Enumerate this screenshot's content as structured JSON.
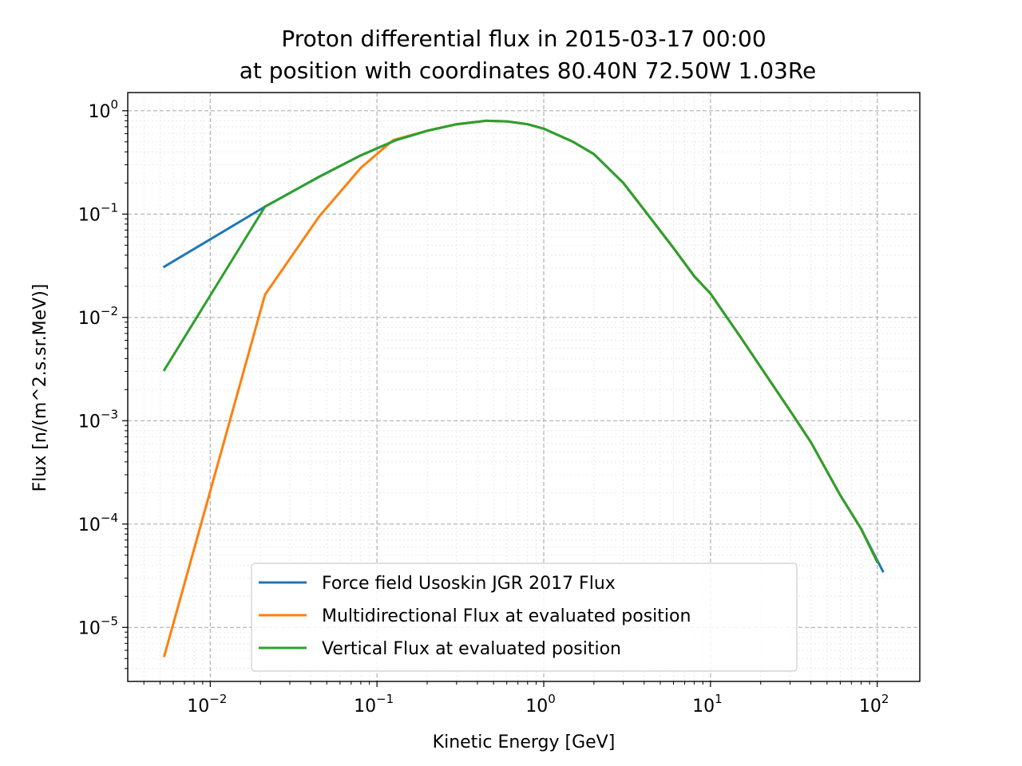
{
  "chart_data": {
    "type": "line",
    "title_line1": "Proton differential flux in 2015-03-17 00:00",
    "title_line2": "at position with coordinates 80.40N 72.50W 1.03Re",
    "xlabel": "Kinetic Energy [GeV]",
    "ylabel": "Flux [n/(m^2.s.sr.MeV)]",
    "xscale": "log",
    "yscale": "log",
    "xlim": [
      0.0032,
      180
    ],
    "ylim": [
      3e-06,
      1.5
    ],
    "grid": true,
    "legend_position": "lower-center",
    "x_ticks": [
      {
        "base": "10",
        "exp": "−2"
      },
      {
        "base": "10",
        "exp": "−1"
      },
      {
        "base": "10",
        "exp": "0"
      },
      {
        "base": "10",
        "exp": "1"
      },
      {
        "base": "10",
        "exp": "2"
      }
    ],
    "y_ticks": [
      {
        "base": "10",
        "exp": "−5"
      },
      {
        "base": "10",
        "exp": "−4"
      },
      {
        "base": "10",
        "exp": "−3"
      },
      {
        "base": "10",
        "exp": "−2"
      },
      {
        "base": "10",
        "exp": "−1"
      },
      {
        "base": "10",
        "exp": "0"
      }
    ],
    "series": [
      {
        "name": "Force field Usoskin JGR 2017 Flux",
        "color": "#1f77b4",
        "points": [
          [
            0.0053,
            0.031
          ],
          [
            0.0213,
            0.118
          ],
          [
            0.045,
            0.23
          ],
          [
            0.08,
            0.37
          ],
          [
            0.13,
            0.52
          ],
          [
            0.2,
            0.64
          ],
          [
            0.3,
            0.74
          ],
          [
            0.45,
            0.8
          ],
          [
            0.6,
            0.79
          ],
          [
            0.8,
            0.74
          ],
          [
            1.0,
            0.67
          ],
          [
            1.5,
            0.5
          ],
          [
            2.0,
            0.38
          ],
          [
            3.0,
            0.2
          ],
          [
            4.0,
            0.11
          ],
          [
            6.0,
            0.047
          ],
          [
            8.0,
            0.025
          ],
          [
            10.0,
            0.017
          ],
          [
            15.0,
            0.0066
          ],
          [
            20.0,
            0.0033
          ],
          [
            30.0,
            0.00125
          ],
          [
            40.0,
            0.00062
          ],
          [
            60.0,
            0.00019
          ],
          [
            80.0,
            9e-05
          ],
          [
            108.0,
            3.5e-05
          ]
        ]
      },
      {
        "name": "Multidirectional Flux at evaluated position",
        "color": "#ff7f0e",
        "points": [
          [
            0.0053,
            5.3e-06
          ],
          [
            0.0213,
            0.0166
          ],
          [
            0.045,
            0.095
          ],
          [
            0.08,
            0.28
          ],
          [
            0.125,
            0.52
          ],
          [
            0.2,
            0.64
          ],
          [
            0.3,
            0.74
          ],
          [
            0.45,
            0.8
          ],
          [
            0.6,
            0.79
          ],
          [
            0.8,
            0.74
          ],
          [
            1.0,
            0.67
          ],
          [
            1.5,
            0.5
          ],
          [
            2.0,
            0.38
          ],
          [
            3.0,
            0.2
          ],
          [
            4.0,
            0.11
          ],
          [
            6.0,
            0.047
          ],
          [
            8.0,
            0.025
          ],
          [
            10.0,
            0.017
          ],
          [
            15.0,
            0.0066
          ],
          [
            20.0,
            0.0033
          ],
          [
            30.0,
            0.00125
          ],
          [
            40.0,
            0.00062
          ],
          [
            60.0,
            0.00019
          ],
          [
            80.0,
            9e-05
          ],
          [
            100.0,
            4.3e-05
          ]
        ]
      },
      {
        "name": "Vertical Flux at evaluated position",
        "color": "#2ca02c",
        "points": [
          [
            0.0053,
            0.0031
          ],
          [
            0.0213,
            0.118
          ],
          [
            0.045,
            0.23
          ],
          [
            0.08,
            0.37
          ],
          [
            0.13,
            0.52
          ],
          [
            0.2,
            0.64
          ],
          [
            0.3,
            0.74
          ],
          [
            0.45,
            0.8
          ],
          [
            0.6,
            0.79
          ],
          [
            0.8,
            0.74
          ],
          [
            1.0,
            0.67
          ],
          [
            1.5,
            0.5
          ],
          [
            2.0,
            0.38
          ],
          [
            3.0,
            0.2
          ],
          [
            4.0,
            0.11
          ],
          [
            6.0,
            0.047
          ],
          [
            8.0,
            0.025
          ],
          [
            10.0,
            0.017
          ],
          [
            15.0,
            0.0066
          ],
          [
            20.0,
            0.0033
          ],
          [
            30.0,
            0.00125
          ],
          [
            40.0,
            0.00062
          ],
          [
            60.0,
            0.00019
          ],
          [
            80.0,
            9e-05
          ],
          [
            100.0,
            4.3e-05
          ]
        ]
      }
    ]
  }
}
